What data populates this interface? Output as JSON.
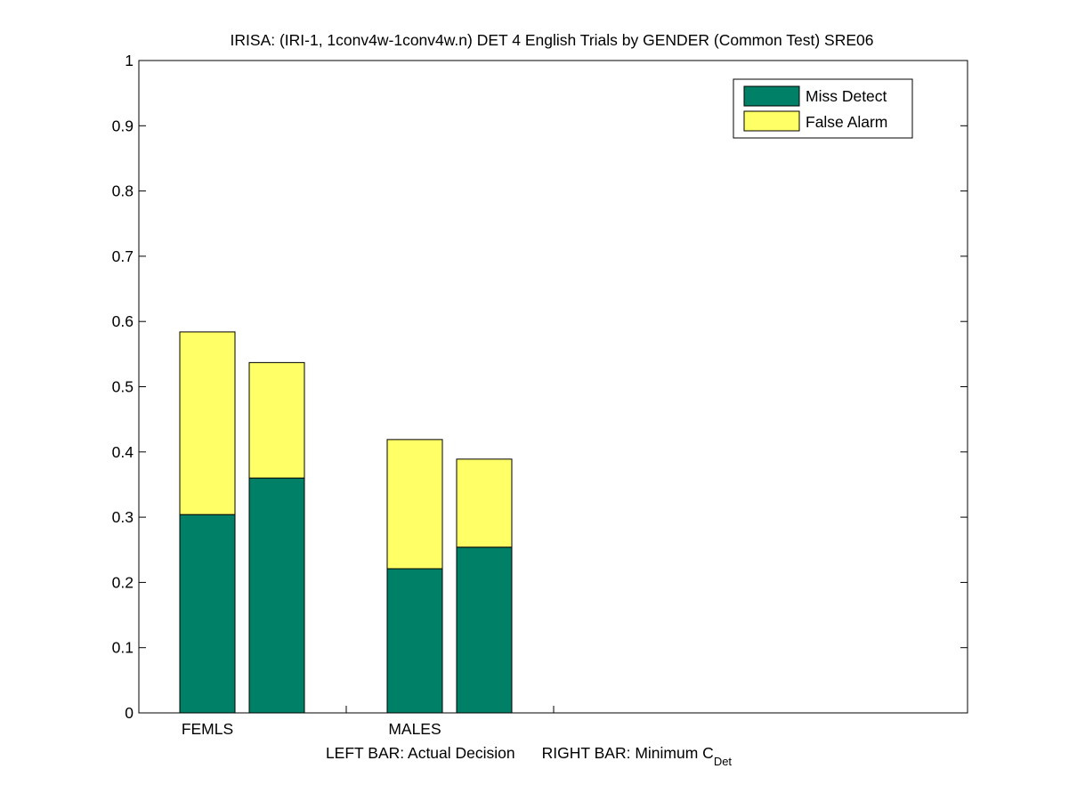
{
  "chart_data": {
    "type": "bar",
    "stacked": true,
    "title": "IRISA: (IRI-1, 1conv4w-1conv4w.n) DET 4 English Trials by GENDER (Common Test) SRE06",
    "xlabel_left": "LEFT BAR: Actual Decision",
    "xlabel_right": "RIGHT BAR: Minimum C",
    "xlabel_right_sub": "Det",
    "ylim": [
      0,
      1
    ],
    "yticks": [
      "0",
      "0.1",
      "0.2",
      "0.3",
      "0.4",
      "0.5",
      "0.6",
      "0.7",
      "0.8",
      "0.9",
      "1"
    ],
    "categories": [
      "FEMLS",
      "MALES"
    ],
    "legend_position": "top-right",
    "grid": false,
    "series": [
      {
        "name": "Miss Detect",
        "color": "#008066",
        "values": [
          [
            0.304,
            0.36
          ],
          [
            0.221,
            0.254
          ]
        ]
      },
      {
        "name": "False Alarm",
        "color": "#ffff66",
        "values": [
          [
            0.28,
            0.177
          ],
          [
            0.198,
            0.135
          ]
        ]
      }
    ]
  }
}
